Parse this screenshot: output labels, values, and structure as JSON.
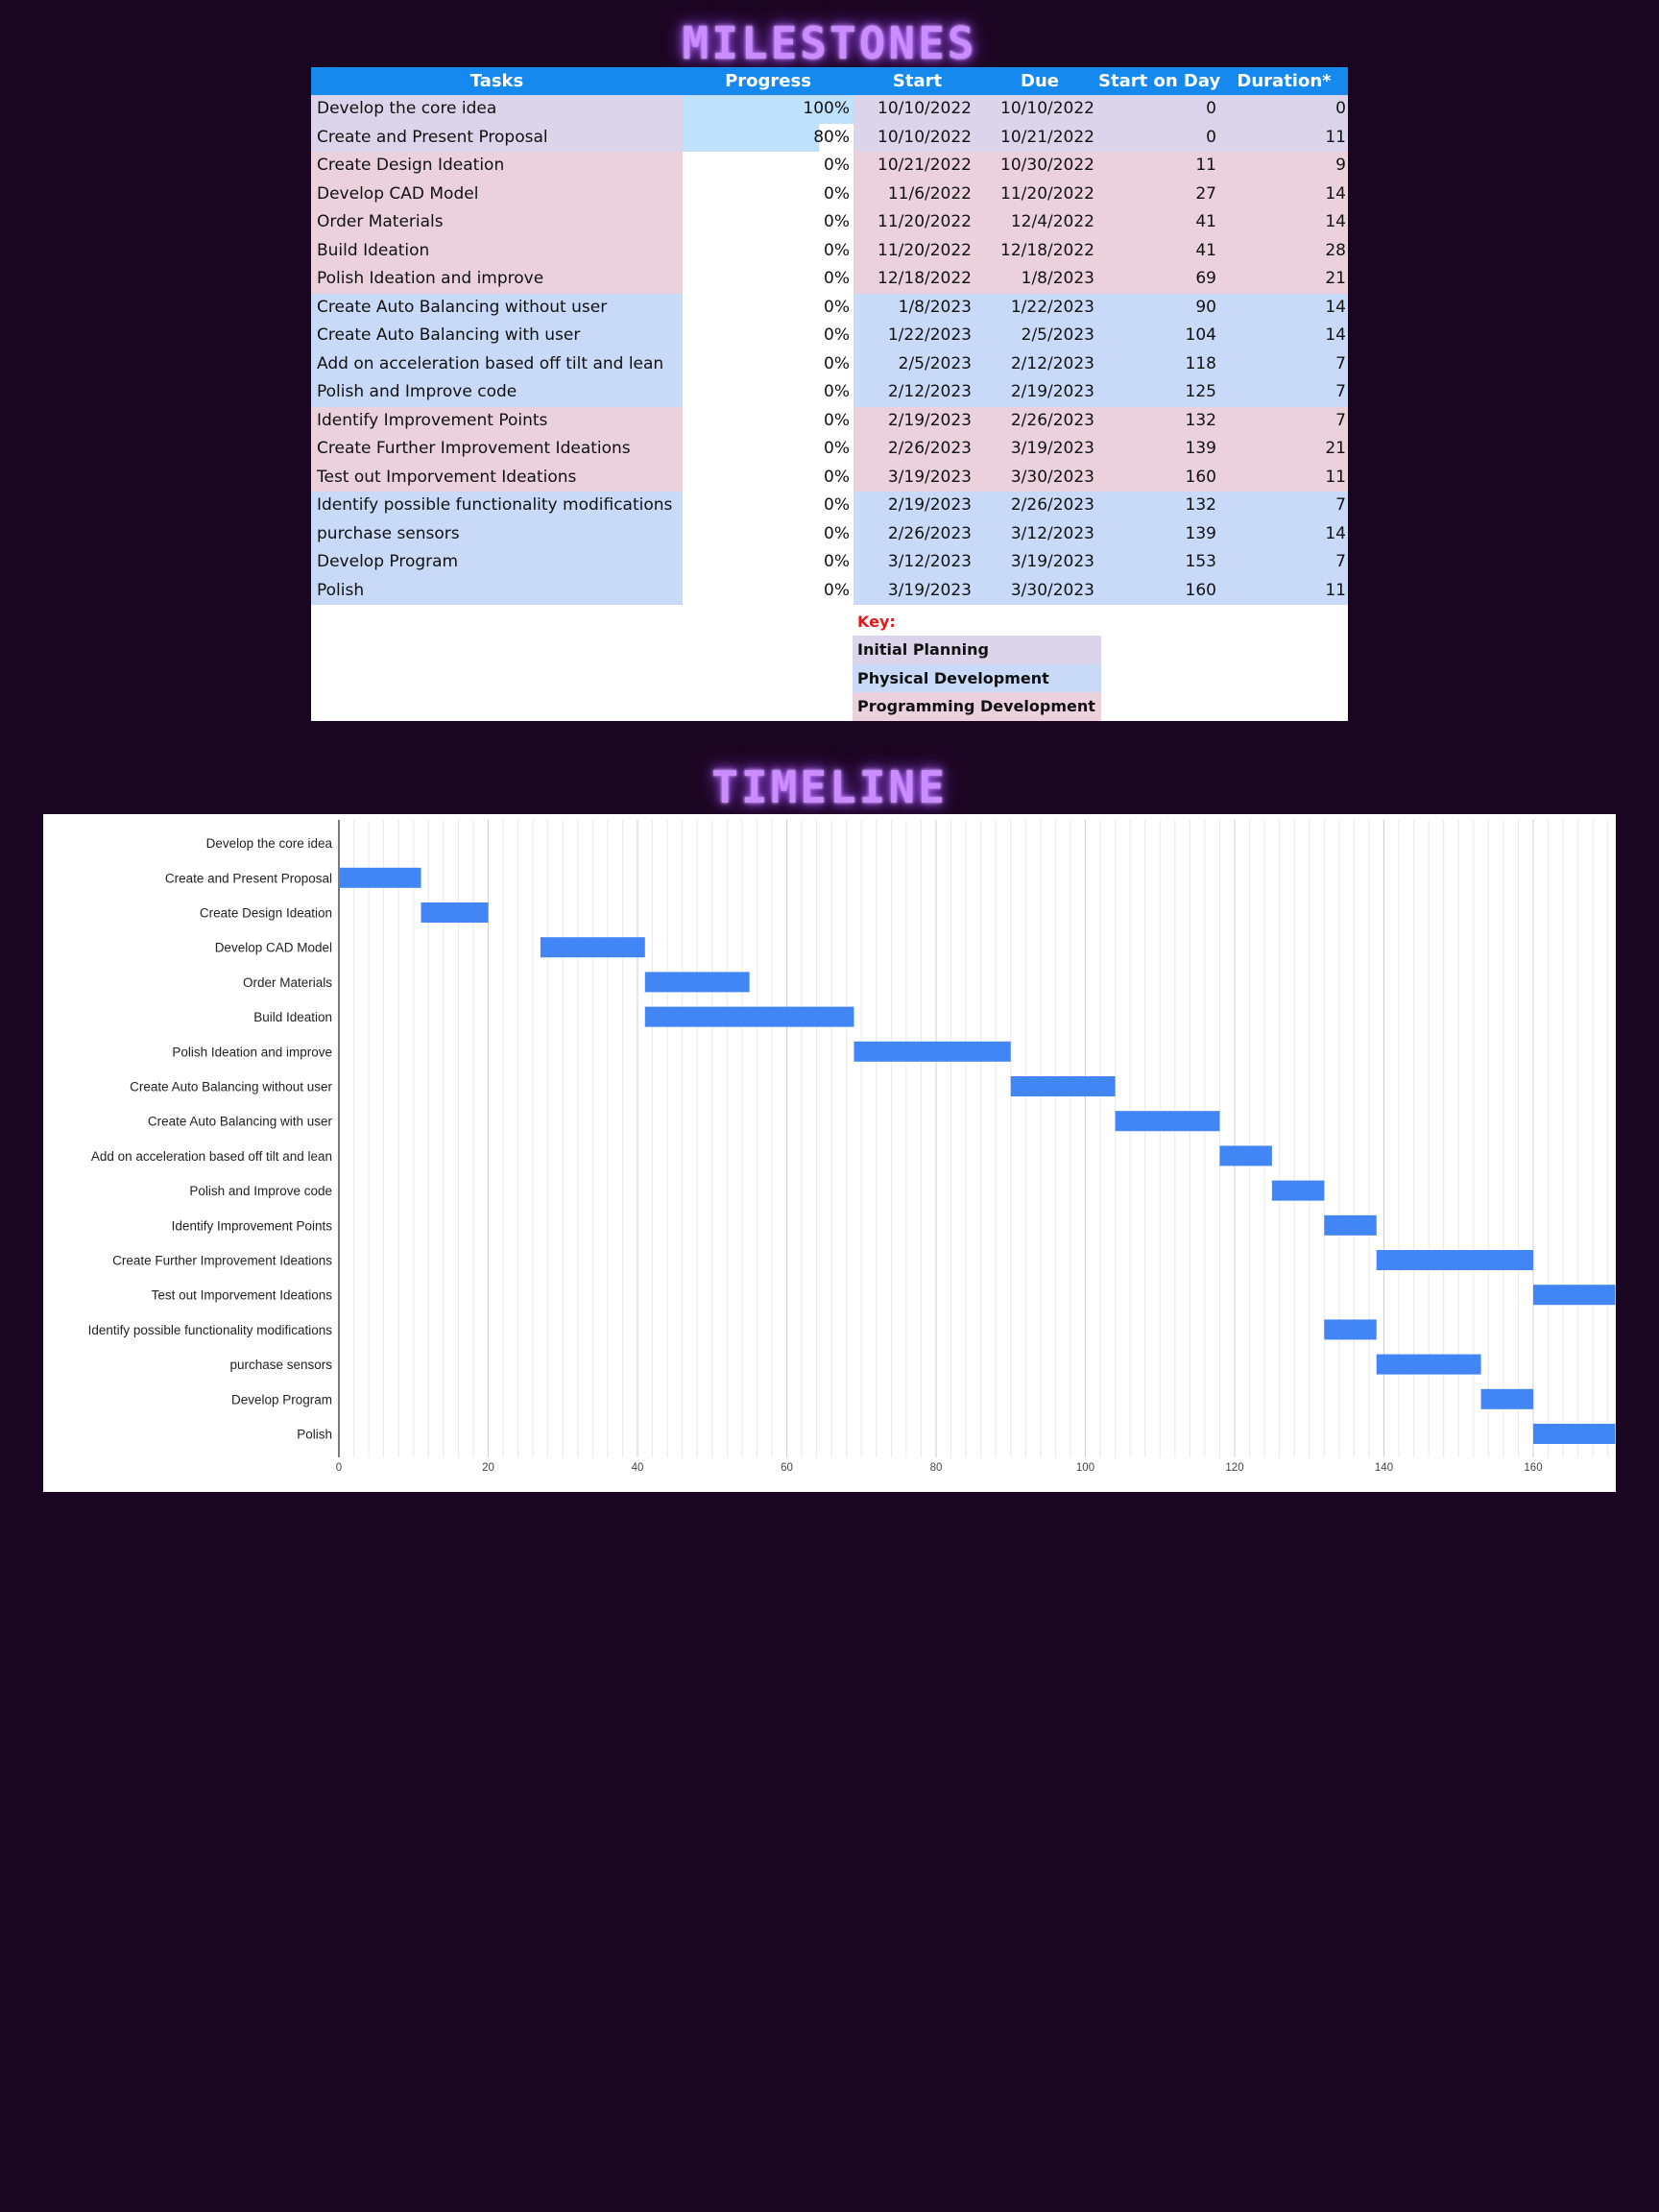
{
  "milestones": {
    "title": "MILESTONES",
    "headers": [
      "Tasks",
      "Progress",
      "Start",
      "Due",
      "Start on Day*",
      "Duration*"
    ],
    "rows": [
      {
        "task": "Develop the core idea",
        "progress": "100%",
        "start": "10/10/2022",
        "due": "10/10/2022",
        "start_day": "0",
        "duration": "0",
        "category": "initial",
        "progress_value": 1.0
      },
      {
        "task": "Create and Present Proposal",
        "progress": "80%",
        "start": "10/10/2022",
        "due": "10/21/2022",
        "start_day": "0",
        "duration": "11",
        "category": "initial",
        "progress_value": 0.8
      },
      {
        "task": "Create Design Ideation",
        "progress": "0%",
        "start": "10/21/2022",
        "due": "10/30/2022",
        "start_day": "11",
        "duration": "9",
        "category": "programming",
        "progress_value": 0
      },
      {
        "task": "Develop CAD Model",
        "progress": "0%",
        "start": "11/6/2022",
        "due": "11/20/2022",
        "start_day": "27",
        "duration": "14",
        "category": "programming",
        "progress_value": 0
      },
      {
        "task": "Order Materials",
        "progress": "0%",
        "start": "11/20/2022",
        "due": "12/4/2022",
        "start_day": "41",
        "duration": "14",
        "category": "programming",
        "progress_value": 0
      },
      {
        "task": "Build Ideation",
        "progress": "0%",
        "start": "11/20/2022",
        "due": "12/18/2022",
        "start_day": "41",
        "duration": "28",
        "category": "programming",
        "progress_value": 0
      },
      {
        "task": "Polish Ideation and improve",
        "progress": "0%",
        "start": "12/18/2022",
        "due": "1/8/2023",
        "start_day": "69",
        "duration": "21",
        "category": "programming",
        "progress_value": 0
      },
      {
        "task": "Create Auto Balancing without user",
        "progress": "0%",
        "start": "1/8/2023",
        "due": "1/22/2023",
        "start_day": "90",
        "duration": "14",
        "category": "physical",
        "progress_value": 0
      },
      {
        "task": "Create Auto Balancing with user",
        "progress": "0%",
        "start": "1/22/2023",
        "due": "2/5/2023",
        "start_day": "104",
        "duration": "14",
        "category": "physical",
        "progress_value": 0
      },
      {
        "task": "Add on acceleration based off tilt and lean",
        "progress": "0%",
        "start": "2/5/2023",
        "due": "2/12/2023",
        "start_day": "118",
        "duration": "7",
        "category": "physical",
        "progress_value": 0
      },
      {
        "task": "Polish and Improve code",
        "progress": "0%",
        "start": "2/12/2023",
        "due": "2/19/2023",
        "start_day": "125",
        "duration": "7",
        "category": "physical",
        "progress_value": 0
      },
      {
        "task": "Identify Improvement Points",
        "progress": "0%",
        "start": "2/19/2023",
        "due": "2/26/2023",
        "start_day": "132",
        "duration": "7",
        "category": "programming",
        "progress_value": 0
      },
      {
        "task": "Create Further Improvement Ideations",
        "progress": "0%",
        "start": "2/26/2023",
        "due": "3/19/2023",
        "start_day": "139",
        "duration": "21",
        "category": "programming",
        "progress_value": 0
      },
      {
        "task": "Test out Imporvement Ideations",
        "progress": "0%",
        "start": "3/19/2023",
        "due": "3/30/2023",
        "start_day": "160",
        "duration": "11",
        "category": "programming",
        "progress_value": 0
      },
      {
        "task": "Identify possible functionality modifications",
        "progress": "0%",
        "start": "2/19/2023",
        "due": "2/26/2023",
        "start_day": "132",
        "duration": "7",
        "category": "physical",
        "progress_value": 0
      },
      {
        "task": "purchase sensors",
        "progress": "0%",
        "start": "2/26/2023",
        "due": "3/12/2023",
        "start_day": "139",
        "duration": "14",
        "category": "physical",
        "progress_value": 0
      },
      {
        "task": "Develop Program",
        "progress": "0%",
        "start": "3/12/2023",
        "due": "3/19/2023",
        "start_day": "153",
        "duration": "7",
        "category": "physical",
        "progress_value": 0
      },
      {
        "task": "Polish",
        "progress": "0%",
        "start": "3/19/2023",
        "due": "3/30/2023",
        "start_day": "160",
        "duration": "11",
        "category": "physical",
        "progress_value": 0
      }
    ],
    "key": {
      "label": "Key:",
      "items": [
        {
          "id": "initial",
          "label": "Initial Planning"
        },
        {
          "id": "physical",
          "label": "Physical Development"
        },
        {
          "id": "programming",
          "label": "Programming Development"
        }
      ]
    }
  },
  "colors": {
    "page_background": "#1b0621",
    "title_glow": "#ca8cff",
    "header": "#1589ee",
    "initial": "#dcd4ea",
    "physical": "#c9daf8",
    "programming": "#ead1dc",
    "progress_fill": "#bfe1fc",
    "key_label": "#e31b1b",
    "bar": "#4285f4"
  },
  "timeline": {
    "title": "TIMELINE"
  },
  "chart_data": {
    "type": "bar",
    "orientation": "horizontal-gantt",
    "title": "",
    "xlabel": "",
    "ylabel": "",
    "xlim": [
      0,
      171
    ],
    "xticks": [
      0,
      20,
      40,
      60,
      80,
      100,
      120,
      140,
      160
    ],
    "minor_grid_step": 2,
    "grid": true,
    "tasks": [
      {
        "label": "Develop the core idea",
        "start": 0,
        "duration": 0
      },
      {
        "label": "Create and Present Proposal",
        "start": 0,
        "duration": 11
      },
      {
        "label": "Create Design Ideation",
        "start": 11,
        "duration": 9
      },
      {
        "label": "Develop CAD Model",
        "start": 27,
        "duration": 14
      },
      {
        "label": "Order Materials",
        "start": 41,
        "duration": 14
      },
      {
        "label": "Build Ideation",
        "start": 41,
        "duration": 28
      },
      {
        "label": "Polish Ideation and improve",
        "start": 69,
        "duration": 21
      },
      {
        "label": "Create Auto Balancing without user",
        "start": 90,
        "duration": 14
      },
      {
        "label": "Create Auto Balancing with user",
        "start": 104,
        "duration": 14
      },
      {
        "label": "Add on acceleration based off tilt and lean",
        "start": 118,
        "duration": 7
      },
      {
        "label": "Polish and Improve code",
        "start": 125,
        "duration": 7
      },
      {
        "label": "Identify Improvement Points",
        "start": 132,
        "duration": 7
      },
      {
        "label": "Create Further Improvement Ideations",
        "start": 139,
        "duration": 21
      },
      {
        "label": "Test out Imporvement Ideations",
        "start": 160,
        "duration": 11
      },
      {
        "label": "Identify possible functionality modifications",
        "start": 132,
        "duration": 7
      },
      {
        "label": "purchase sensors",
        "start": 139,
        "duration": 14
      },
      {
        "label": "Develop Program",
        "start": 153,
        "duration": 7
      },
      {
        "label": "Polish",
        "start": 160,
        "duration": 11
      }
    ]
  }
}
